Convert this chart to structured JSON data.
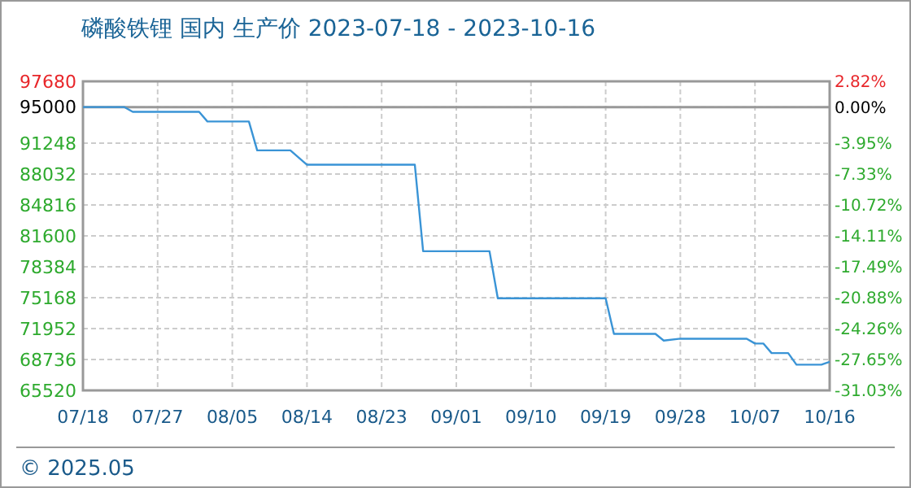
{
  "chart_data": {
    "type": "line",
    "title": "磷酸铁锂 国内 生产价 2023-07-18 - 2023-10-16",
    "x": [
      "2023-07-18",
      "2023-07-23",
      "2023-07-24",
      "2023-08-01",
      "2023-08-02",
      "2023-08-07",
      "2023-08-08",
      "2023-08-12",
      "2023-08-14",
      "2023-08-27",
      "2023-08-28",
      "2023-09-05",
      "2023-09-06",
      "2023-09-19",
      "2023-09-20",
      "2023-09-25",
      "2023-09-26",
      "2023-09-28",
      "2023-10-06",
      "2023-10-07",
      "2023-10-08",
      "2023-10-09",
      "2023-10-11",
      "2023-10-12",
      "2023-10-15",
      "2023-10-16"
    ],
    "series": [
      {
        "color": "#3a94d6",
        "values": [
          95000,
          95000,
          94500,
          94500,
          93500,
          93500,
          90500,
          90500,
          89000,
          89000,
          80000,
          80000,
          75100,
          75100,
          71400,
          71400,
          70700,
          70900,
          70900,
          70400,
          70400,
          69400,
          69400,
          68200,
          68200,
          68500
        ]
      }
    ],
    "xlim": [
      "2023-07-18",
      "2023-10-16"
    ],
    "xticks": [
      {
        "value": "2023-07-18",
        "label": "07/18"
      },
      {
        "value": "2023-07-27",
        "label": "07/27"
      },
      {
        "value": "2023-08-05",
        "label": "08/05"
      },
      {
        "value": "2023-08-14",
        "label": "08/14"
      },
      {
        "value": "2023-08-23",
        "label": "08/23"
      },
      {
        "value": "2023-09-01",
        "label": "09/01"
      },
      {
        "value": "2023-09-10",
        "label": "09/10"
      },
      {
        "value": "2023-09-19",
        "label": "09/19"
      },
      {
        "value": "2023-09-28",
        "label": "09/28"
      },
      {
        "value": "2023-10-07",
        "label": "10/07"
      },
      {
        "value": "2023-10-16",
        "label": "10/16"
      }
    ],
    "ylim": [
      65520,
      97680
    ],
    "yticks": [
      97680,
      95000,
      91248,
      88032,
      84816,
      81600,
      78384,
      75168,
      71952,
      68736,
      65520
    ],
    "y2lim": [
      -31.03,
      2.82
    ],
    "y2ticks": [
      {
        "value": 2.82,
        "label": "2.82%"
      },
      {
        "value": 0,
        "label": "0.00%"
      },
      {
        "value": -3.95,
        "label": "-3.95%"
      },
      {
        "value": -7.33,
        "label": "-7.33%"
      },
      {
        "value": -10.72,
        "label": "-10.72%"
      },
      {
        "value": -14.11,
        "label": "-14.11%"
      },
      {
        "value": -17.49,
        "label": "-17.49%"
      },
      {
        "value": -20.88,
        "label": "-20.88%"
      },
      {
        "value": -24.26,
        "label": "-24.26%"
      },
      {
        "value": -27.65,
        "label": "-27.65%"
      },
      {
        "value": -31.03,
        "label": "-31.03%"
      }
    ],
    "ref_lines": [
      {
        "axis": "y",
        "value": 95000,
        "color": "#999999"
      }
    ],
    "grid": true,
    "annotations": [
      "© 2025.05"
    ]
  }
}
